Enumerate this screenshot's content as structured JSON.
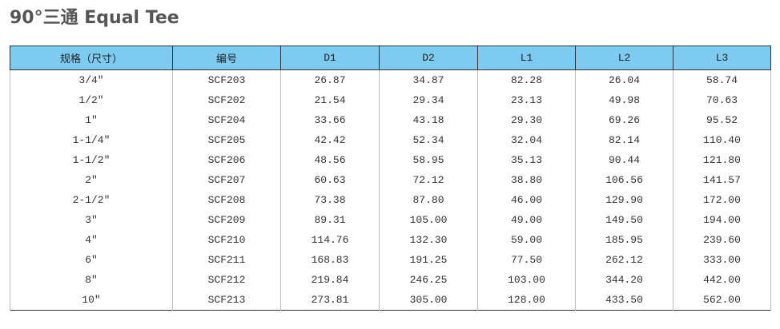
{
  "title": "90°三通 Equal Tee",
  "table": {
    "header": [
      "规格（尺寸）",
      "编号",
      "D1",
      "D2",
      "L1",
      "L2",
      "L3"
    ],
    "rows": [
      [
        "3/4″",
        "SCF203",
        "26.87",
        "34.87",
        "82.28",
        "26.04",
        "58.74"
      ],
      [
        "1/2″",
        "SCF202",
        "21.54",
        "29.34",
        "23.13",
        "49.98",
        "70.63"
      ],
      [
        "1″",
        "SCF204",
        "33.66",
        "43.18",
        "29.30",
        "69.26",
        "95.52"
      ],
      [
        "1-1/4″",
        "SCF205",
        "42.42",
        "52.34",
        "32.04",
        "82.14",
        "110.40"
      ],
      [
        "1-1/2″",
        "SCF206",
        "48.56",
        "58.95",
        "35.13",
        "90.44",
        "121.80"
      ],
      [
        "2″",
        "SCF207",
        "60.63",
        "72.12",
        "38.80",
        "106.56",
        "141.57"
      ],
      [
        "2-1/2″",
        "SCF208",
        "73.38",
        "87.80",
        "46.00",
        "129.90",
        "172.00"
      ],
      [
        "3″",
        "SCF209",
        "89.31",
        "105.00",
        "49.00",
        "149.50",
        "194.00"
      ],
      [
        "4″",
        "SCF210",
        "114.76",
        "132.30",
        "59.00",
        "185.95",
        "239.60"
      ],
      [
        "6″",
        "SCF211",
        "168.83",
        "191.25",
        "77.50",
        "262.12",
        "333.00"
      ],
      [
        "8″",
        "SCF212",
        "219.84",
        "246.25",
        "103.00",
        "344.20",
        "442.00"
      ],
      [
        "10″",
        "SCF213",
        "273.81",
        "305.00",
        "128.00",
        "433.50",
        "562.00"
      ]
    ]
  }
}
